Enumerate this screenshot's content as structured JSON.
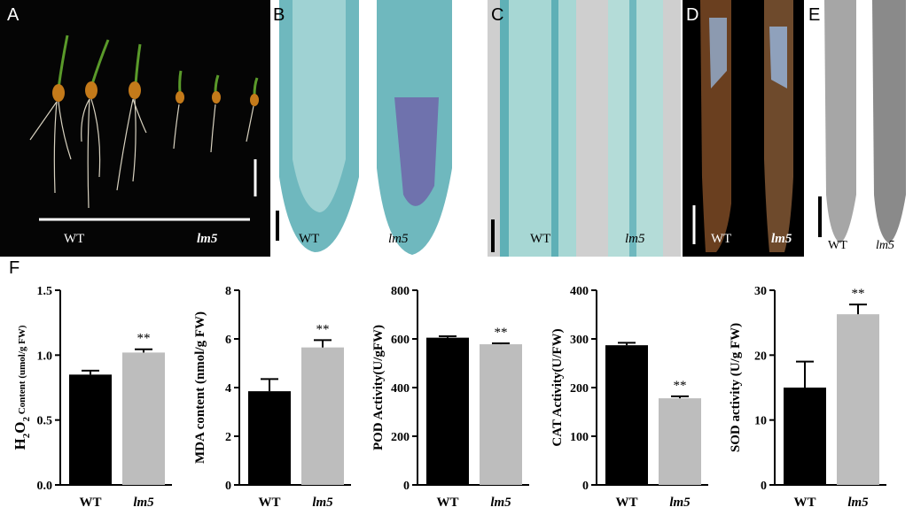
{
  "panels": {
    "A": {
      "letter": "A",
      "wt_label": "WT",
      "mut_label": "lm5"
    },
    "B": {
      "letter": "B",
      "wt_label": "WT",
      "mut_label": "lm5"
    },
    "C": {
      "letter": "C",
      "wt_label": "WT",
      "mut_label": "lm5"
    },
    "D": {
      "letter": "D",
      "wt_label": "WT",
      "mut_label": "lm5"
    },
    "E": {
      "letter": "E",
      "wt_label": "WT",
      "mut_label": "lm5"
    }
  },
  "section_label": "F",
  "colors": {
    "wt_bar": "#000000",
    "mutant_bar": "#bdbdbd",
    "stain": "#6fb8be",
    "dark_bg": "#050505"
  },
  "chart_data": [
    {
      "type": "bar",
      "categories": [
        "WT",
        "lm5"
      ],
      "values": [
        0.85,
        1.02
      ],
      "errors": [
        0.03,
        0.025
      ],
      "ylabel_main": "H",
      "ylabel_sub": "2",
      "ylabel_mid": "O",
      "ylabel_sub2": "2",
      "ylabel_rest": " Content (umol/g FW)",
      "ylim": [
        0,
        1.5
      ],
      "ticks": [
        "0.0",
        "0.5",
        "1.0",
        "1.5"
      ],
      "tick_values": [
        0,
        0.5,
        1.0,
        1.5
      ],
      "significance": "**"
    },
    {
      "type": "bar",
      "categories": [
        "WT",
        "lm5"
      ],
      "values": [
        3.85,
        5.65
      ],
      "errors": [
        0.5,
        0.3
      ],
      "ylabel": "MDA content (nmol/g FW)",
      "ylim": [
        0,
        8
      ],
      "ticks": [
        "0",
        "2",
        "4",
        "6",
        "8"
      ],
      "tick_values": [
        0,
        2,
        4,
        6,
        8
      ],
      "significance": "**"
    },
    {
      "type": "bar",
      "categories": [
        "WT",
        "lm5"
      ],
      "values": [
        605,
        578
      ],
      "errors": [
        6,
        4
      ],
      "ylabel": "POD  Activity(U/gFW)",
      "ylim": [
        0,
        800
      ],
      "ticks": [
        "0",
        "200",
        "400",
        "600",
        "800"
      ],
      "tick_values": [
        0,
        200,
        400,
        600,
        800
      ],
      "significance": "**"
    },
    {
      "type": "bar",
      "categories": [
        "WT",
        "lm5"
      ],
      "values": [
        287,
        178
      ],
      "errors": [
        5,
        4
      ],
      "ylabel": "CAT Activity(U/FW)",
      "ylim": [
        0,
        400
      ],
      "ticks": [
        "0",
        "100",
        "200",
        "300",
        "400"
      ],
      "tick_values": [
        0,
        100,
        200,
        300,
        400
      ],
      "significance": "**"
    },
    {
      "type": "bar",
      "categories": [
        "WT",
        "lm5"
      ],
      "values": [
        15.0,
        26.3
      ],
      "errors": [
        4.0,
        1.5
      ],
      "ylabel": "SOD activity (U/g FW)",
      "ylim": [
        0,
        30
      ],
      "ticks": [
        "0",
        "10",
        "20",
        "30"
      ],
      "tick_values": [
        0,
        10,
        20,
        30
      ],
      "significance": "**"
    }
  ]
}
